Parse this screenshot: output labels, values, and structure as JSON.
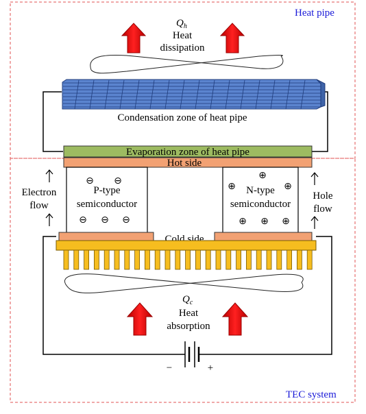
{
  "regions": {
    "heat_pipe": {
      "label": "Heat pipe",
      "color": "#1a1ad8"
    },
    "tec_system": {
      "label": "TEC system",
      "color": "#1a1ad8"
    },
    "border_color": "#e05050"
  },
  "heat_dissipation": {
    "symbol": "Q",
    "subscript": "h",
    "line1": "Heat",
    "line2": "dissipation"
  },
  "heat_absorption": {
    "symbol": "Q",
    "subscript": "c",
    "line1": "Heat",
    "line2": "absorption"
  },
  "condensation_zone": {
    "label": "Condensation zone of heat pipe",
    "color": "#5b84cf"
  },
  "evaporation_zone": {
    "label": "Evaporation zone of heat pipe",
    "color": "#9dbb61"
  },
  "hot_side": {
    "label": "Hot side",
    "color": "#f2a173"
  },
  "cold_side": {
    "label": "Cold side",
    "color": "#f2a173"
  },
  "p_type": {
    "line1": "P-type",
    "line2": "semiconductor",
    "carrier_symbol": "⊖"
  },
  "n_type": {
    "line1": "N-type",
    "line2": "semiconductor",
    "carrier_symbol": "⊕"
  },
  "electron_flow": {
    "line1": "Electron",
    "line2": "flow"
  },
  "hole_flow": {
    "line1": "Hole",
    "line2": "flow"
  },
  "heat_sink": {
    "color": "#f6bd1f"
  },
  "battery": {
    "minus": "−",
    "plus": "+"
  },
  "arrow_color": "#ee1111"
}
